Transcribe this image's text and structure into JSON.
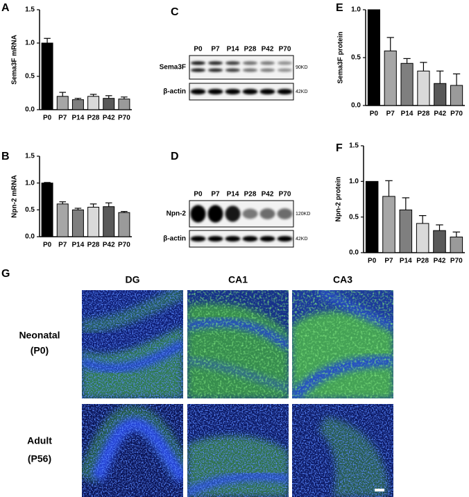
{
  "chart_data": [
    {
      "type": "bar",
      "panel": "A",
      "ylabel": "Sema3F mRNA",
      "categories": [
        "P0",
        "P7",
        "P14",
        "P28",
        "P42",
        "P70"
      ],
      "values": [
        1.0,
        0.2,
        0.15,
        0.2,
        0.17,
        0.16
      ],
      "errors": [
        0.07,
        0.06,
        0.02,
        0.03,
        0.04,
        0.03
      ],
      "colors": [
        "#000000",
        "#a6a6a6",
        "#7f7f7f",
        "#d9d9d9",
        "#595959",
        "#9a9a9a"
      ],
      "ylim": [
        0,
        1.5
      ],
      "yticks": [
        {
          "value": 0,
          "label": "0.0"
        },
        0.5,
        {
          "value": 1,
          "label": "1.0"
        },
        1.5
      ]
    },
    {
      "type": "bar",
      "panel": "B",
      "ylabel": "Npn-2 mRNA",
      "categories": [
        "P0",
        "P7",
        "P14",
        "P28",
        "P42",
        "P70"
      ],
      "values": [
        1.0,
        0.61,
        0.5,
        0.55,
        0.56,
        0.45
      ],
      "errors": [
        0.01,
        0.04,
        0.03,
        0.06,
        0.07,
        0.02
      ],
      "colors": [
        "#000000",
        "#a6a6a6",
        "#7f7f7f",
        "#d9d9d9",
        "#595959",
        "#9a9a9a"
      ],
      "ylim": [
        0,
        1.5
      ],
      "yticks": [
        {
          "value": 0,
          "label": "0.0"
        },
        0.5,
        {
          "value": 1,
          "label": "1.0"
        },
        1.5
      ]
    },
    {
      "type": "bar",
      "panel": "E",
      "ylabel": "Sema3F protein",
      "categories": [
        "P0",
        "P7",
        "P14",
        "P28",
        "P42",
        "P70"
      ],
      "values": [
        1.0,
        0.57,
        0.44,
        0.36,
        0.23,
        0.21
      ],
      "errors": [
        0,
        0.14,
        0.05,
        0.09,
        0.13,
        0.12
      ],
      "colors": [
        "#000000",
        "#a6a6a6",
        "#7f7f7f",
        "#d9d9d9",
        "#595959",
        "#9a9a9a"
      ],
      "ylim": [
        0,
        1.0
      ],
      "yticks": [
        {
          "value": 0,
          "label": "0.0"
        },
        0.5,
        {
          "value": 1,
          "label": "1.0"
        }
      ]
    },
    {
      "type": "bar",
      "panel": "F",
      "ylabel": "Npn-2 protein",
      "categories": [
        "P0",
        "P7",
        "P14",
        "P28",
        "P42",
        "P70"
      ],
      "values": [
        1.0,
        0.79,
        0.6,
        0.41,
        0.31,
        0.22
      ],
      "errors": [
        0,
        0.22,
        0.17,
        0.11,
        0.08,
        0.07
      ],
      "colors": [
        "#000000",
        "#a6a6a6",
        "#7f7f7f",
        "#d9d9d9",
        "#595959",
        "#9a9a9a"
      ],
      "ylim": [
        0,
        1.5
      ],
      "yticks": [
        {
          "value": 0,
          "label": "0.0"
        },
        0.5,
        {
          "value": 1,
          "label": "1.0"
        },
        1.5
      ]
    }
  ],
  "blots": [
    {
      "panel": "C",
      "lanes": [
        "P0",
        "P7",
        "P14",
        "P28",
        "P42",
        "P70"
      ],
      "rows": [
        {
          "label": "Sema3F",
          "size": "90KD"
        },
        {
          "label": "β-actin",
          "size": "42KD"
        }
      ]
    },
    {
      "panel": "D",
      "lanes": [
        "P0",
        "P7",
        "P14",
        "P28",
        "P42",
        "P70"
      ],
      "rows": [
        {
          "label": "Npn-2",
          "size": "120KD"
        },
        {
          "label": "β-actin",
          "size": "42KD"
        }
      ]
    }
  ],
  "micrographs": {
    "panel": "G",
    "columns": [
      "DG",
      "CA1",
      "CA3"
    ],
    "rows": [
      [
        "Neonatal",
        "(P0)"
      ],
      [
        "Adult",
        "(P56)"
      ]
    ]
  }
}
